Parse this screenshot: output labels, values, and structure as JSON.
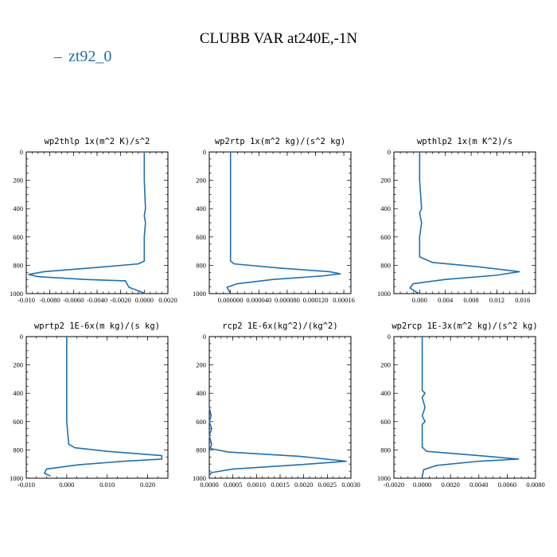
{
  "figure": {
    "title": "CLUBB VAR at240E,-1N",
    "legend_label": "zt92_0",
    "line_color": "#1f6fb0"
  },
  "chart_data": [
    {
      "type": "line",
      "title": "wp2thlp  1x(m^2 K)/s^2",
      "xlim": [
        -0.01,
        0.002
      ],
      "ylim": [
        1000,
        0
      ],
      "xticks": [
        -0.01,
        -0.008,
        -0.006,
        -0.004,
        -0.002,
        0.0,
        0.002
      ],
      "xtick_labels": [
        "-0.010",
        "-0.0080",
        "-0.0060",
        "-0.0040",
        "-0.0020",
        "0.0000",
        "0.0020"
      ],
      "yticks": [
        0,
        200,
        400,
        600,
        800,
        1000
      ],
      "ytick_labels": [
        "0",
        "200",
        "400",
        "600",
        "800",
        "1000"
      ],
      "series": [
        {
          "name": "zt92_0",
          "x": [
            0.0,
            0.0,
            0.0001,
            0.0,
            0.0001,
            0.0,
            0.0,
            -0.0005,
            -0.004,
            -0.0085,
            -0.0098,
            -0.009,
            -0.005,
            -0.0016,
            -0.0013,
            -0.0002,
            0.0001
          ],
          "y": [
            0,
            200,
            400,
            450,
            500,
            600,
            770,
            790,
            815,
            845,
            865,
            880,
            900,
            910,
            955,
            990,
            1000
          ]
        }
      ]
    },
    {
      "type": "line",
      "title": "wp2rtp  1x(m^2 kg)/(s^2 kg)",
      "xlim": [
        -3e-05,
        0.00017
      ],
      "ylim": [
        1000,
        0
      ],
      "xticks": [
        0.0,
        4e-05,
        8e-05,
        0.00012,
        0.00016
      ],
      "xtick_labels": [
        "0.000000",
        "0.000040",
        "0.000080",
        "0.000120",
        "0.00016"
      ],
      "yticks": [
        0,
        200,
        400,
        600,
        800,
        1000
      ],
      "ytick_labels": [
        "0",
        "200",
        "400",
        "600",
        "800",
        "1000"
      ],
      "series": [
        {
          "name": "zt92_0",
          "x": [
            0.0,
            0.0,
            0.0,
            0.0,
            5e-06,
            7e-05,
            0.00014,
            0.000155,
            0.00013,
            6e-05,
            1e-05,
            -5e-06,
            0.0
          ],
          "y": [
            0,
            300,
            500,
            770,
            790,
            820,
            845,
            860,
            875,
            900,
            930,
            955,
            1000
          ]
        }
      ]
    },
    {
      "type": "line",
      "title": "wpthlp2  1x(m K^2)/s",
      "xlim": [
        -0.004,
        0.018
      ],
      "ylim": [
        1000,
        0
      ],
      "xticks": [
        0.0,
        0.004,
        0.008,
        0.012,
        0.016
      ],
      "xtick_labels": [
        "0.000",
        "0.004",
        "0.008",
        "0.012",
        "0.016"
      ],
      "yticks": [
        0,
        200,
        400,
        600,
        800,
        1000
      ],
      "ytick_labels": [
        "0",
        "200",
        "400",
        "600",
        "800",
        "1000"
      ],
      "series": [
        {
          "name": "zt92_0",
          "x": [
            0.0,
            0.0,
            0.0003,
            0.0,
            0.0003,
            0.0,
            0.0,
            0.002,
            0.009,
            0.0155,
            0.012,
            0.004,
            -0.001,
            -0.0015,
            -0.0005,
            0.0
          ],
          "y": [
            0,
            200,
            400,
            430,
            500,
            600,
            740,
            780,
            810,
            845,
            870,
            900,
            930,
            960,
            990,
            1000
          ]
        }
      ]
    },
    {
      "type": "line",
      "title": "wprtp2  1E-6x(m kg)/(s kg)",
      "xlim": [
        -0.01,
        0.025
      ],
      "ylim": [
        1000,
        0
      ],
      "xticks": [
        -0.01,
        0.0,
        0.01,
        0.02
      ],
      "xtick_labels": [
        "-0.010",
        "0.000",
        "0.010",
        "0.020"
      ],
      "yticks": [
        0,
        200,
        400,
        600,
        800,
        1000
      ],
      "ytick_labels": [
        "0",
        "200",
        "400",
        "600",
        "800",
        "1000"
      ],
      "series": [
        {
          "name": "zt92_0",
          "x": [
            0.0,
            0.0,
            0.0,
            0.0005,
            0.002,
            0.01,
            0.0235,
            0.0235,
            0.014,
            0.003,
            -0.005,
            -0.0055,
            -0.004
          ],
          "y": [
            0,
            300,
            600,
            760,
            785,
            810,
            840,
            865,
            880,
            905,
            935,
            965,
            985
          ]
        }
      ]
    },
    {
      "type": "line",
      "title": "rcp2  1E-6x(kg^2)/(kg^2)",
      "xlim": [
        0.0,
        0.003
      ],
      "ylim": [
        1000,
        0
      ],
      "xticks": [
        0.0,
        0.0005,
        0.001,
        0.0015,
        0.002,
        0.0025,
        0.003
      ],
      "xtick_labels": [
        "0.0000",
        "0.0005",
        "0.0010",
        "0.0015",
        "0.0020",
        "0.0025",
        "0.0030"
      ],
      "yticks": [
        0,
        200,
        400,
        600,
        800,
        1000
      ],
      "ytick_labels": [
        "0",
        "200",
        "400",
        "600",
        "800",
        "1000"
      ],
      "series": [
        {
          "name": "zt92_0",
          "x": [
            0.0,
            4e-05,
            0.0,
            5e-05,
            0.0,
            5e-05,
            2e-05,
            0.0004,
            0.0019,
            0.0029,
            0.0019,
            0.0005,
            5e-05,
            0.0
          ],
          "y": [
            500,
            560,
            600,
            650,
            700,
            760,
            790,
            815,
            845,
            880,
            905,
            935,
            960,
            980
          ]
        }
      ]
    },
    {
      "type": "line",
      "title": "wp2rcp  1E-3x(m^2 kg)/(s^2 kg)",
      "xlim": [
        -0.002,
        0.008
      ],
      "ylim": [
        1000,
        0
      ],
      "xticks": [
        -0.002,
        0.0,
        0.002,
        0.004,
        0.006,
        0.008
      ],
      "xtick_labels": [
        "-0.0020",
        "0.0000",
        "0.0020",
        "0.0040",
        "0.0060",
        "0.0080"
      ],
      "yticks": [
        0,
        200,
        400,
        600,
        800,
        1000
      ],
      "ytick_labels": [
        "0",
        "200",
        "400",
        "600",
        "800",
        "1000"
      ],
      "series": [
        {
          "name": "zt92_0",
          "x": [
            0.0,
            0.0,
            0.0002,
            0.0,
            0.0002,
            0.0,
            0.0002,
            0.0,
            0.0,
            0.0003,
            0.004,
            0.0068,
            0.004,
            0.001,
            0.0001,
            0.0
          ],
          "y": [
            0,
            380,
            400,
            430,
            500,
            560,
            600,
            620,
            780,
            810,
            840,
            865,
            880,
            910,
            940,
            990
          ]
        }
      ]
    }
  ]
}
